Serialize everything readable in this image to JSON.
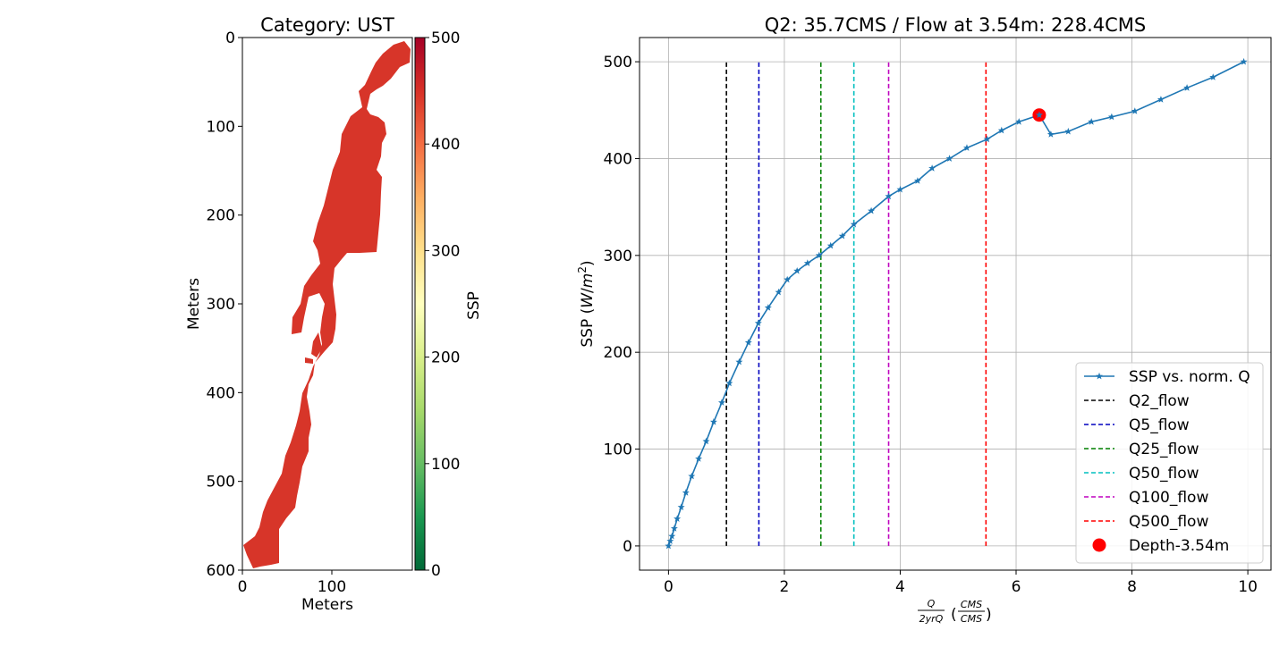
{
  "chart_data": [
    {
      "type": "heatmap",
      "title": "Category: UST",
      "xlabel": "Meters",
      "ylabel": "Meters",
      "xlim": [
        0,
        190
      ],
      "ylim": [
        600,
        0
      ],
      "x_ticks": [
        "0",
        "100"
      ],
      "y_ticks": [
        "0",
        "100",
        "200",
        "300",
        "400",
        "500",
        "600"
      ],
      "fill_value": 450,
      "colorbar": {
        "label": "SSP",
        "range": [
          0,
          500
        ],
        "ticks": [
          "0",
          "100",
          "200",
          "300",
          "400",
          "500"
        ],
        "colormap": "RdYlGn_r"
      },
      "fill_color": "#d73529"
    },
    {
      "type": "line",
      "title": "Q2: 35.7CMS / Flow at 3.54m: 228.4CMS",
      "xlabel": "Q/2yrQ (CMS/CMS)",
      "ylabel": "SSP (W/m²)",
      "xlim": [
        -0.5,
        10.4
      ],
      "ylim": [
        -25,
        525
      ],
      "x_ticks": [
        "0",
        "2",
        "4",
        "6",
        "8",
        "10"
      ],
      "y_ticks": [
        "0",
        "100",
        "200",
        "300",
        "400",
        "500"
      ],
      "grid": true,
      "legend_position": "lower-right",
      "series": [
        {
          "name": "SSP vs. norm. Q",
          "color": "#1f77b4",
          "marker": "star",
          "x": [
            0,
            0.03,
            0.06,
            0.1,
            0.15,
            0.22,
            0.3,
            0.4,
            0.52,
            0.65,
            0.78,
            0.92,
            1.05,
            1.22,
            1.38,
            1.55,
            1.72,
            1.9,
            2.05,
            2.22,
            2.4,
            2.6,
            2.8,
            3.0,
            3.2,
            3.5,
            3.8,
            4.0,
            4.3,
            4.55,
            4.85,
            5.15,
            5.5,
            5.75,
            6.05,
            6.4,
            6.6,
            6.9,
            7.3,
            7.65,
            8.05,
            8.5,
            8.95,
            9.4,
            9.93
          ],
          "y": [
            0,
            5,
            10,
            18,
            28,
            40,
            55,
            72,
            90,
            108,
            128,
            148,
            168,
            190,
            210,
            230,
            246,
            262,
            275,
            284,
            292,
            300,
            310,
            320,
            332,
            346,
            361,
            368,
            377,
            390,
            400,
            411,
            420,
            429,
            438,
            445,
            425,
            428,
            438,
            443,
            449,
            461,
            473,
            484,
            500
          ]
        }
      ],
      "vlines": [
        {
          "name": "Q2_flow",
          "x": 1.0,
          "ymin": 0,
          "ymax": 500,
          "color": "#000000"
        },
        {
          "name": "Q5_flow",
          "x": 1.56,
          "ymin": 0,
          "ymax": 500,
          "color": "#0000bf"
        },
        {
          "name": "Q25_flow",
          "x": 2.63,
          "ymin": 0,
          "ymax": 500,
          "color": "#008000"
        },
        {
          "name": "Q50_flow",
          "x": 3.2,
          "ymin": 0,
          "ymax": 500,
          "color": "#00bfbf"
        },
        {
          "name": "Q100_flow",
          "x": 3.8,
          "ymin": 0,
          "ymax": 500,
          "color": "#bf00bf"
        },
        {
          "name": "Q500_flow",
          "x": 5.48,
          "ymin": 0,
          "ymax": 500,
          "color": "#ff0000"
        }
      ],
      "point": {
        "name": "Depth-3.54m",
        "x": 6.4,
        "y": 445,
        "color": "#ff0000"
      }
    }
  ]
}
